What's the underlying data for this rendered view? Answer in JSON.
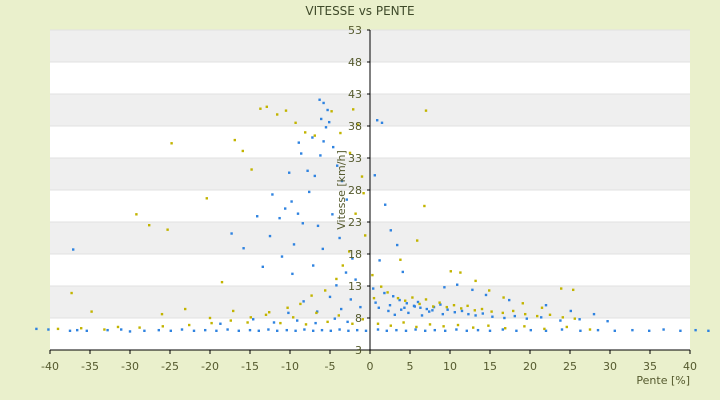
{
  "chart_data": {
    "type": "scatter",
    "title": "VITESSE vs PENTE",
    "xlabel": "Pente [%]",
    "ylabel": "Vitesse [km/h]",
    "xlim": [
      -40,
      40
    ],
    "ylim": [
      3,
      53
    ],
    "x_ticks": [
      -40,
      -35,
      -30,
      -25,
      -20,
      -15,
      -10,
      -5,
      0,
      5,
      10,
      15,
      20,
      25,
      30,
      35,
      40
    ],
    "y_ticks": [
      3,
      8,
      13,
      18,
      23,
      28,
      33,
      38,
      43,
      48,
      53
    ],
    "grid": "horizontal alternating bands",
    "series": [
      {
        "color": "#2f83e0",
        "points": [
          [
            -41.7,
            6.3
          ],
          [
            -40.2,
            6.2
          ],
          [
            -37.5,
            6.0
          ],
          [
            -36.6,
            6.1
          ],
          [
            -35.4,
            6.0
          ],
          [
            -32.8,
            6.1
          ],
          [
            -31.1,
            6.2
          ],
          [
            -30.0,
            5.9
          ],
          [
            -28.2,
            6.0
          ],
          [
            -26.4,
            6.1
          ],
          [
            -24.9,
            6.0
          ],
          [
            -23.5,
            6.2
          ],
          [
            -22.0,
            6.0
          ],
          [
            -20.6,
            6.1
          ],
          [
            -19.2,
            6.0
          ],
          [
            -17.8,
            6.2
          ],
          [
            -16.4,
            6.0
          ],
          [
            -15.0,
            6.1
          ],
          [
            -13.9,
            6.0
          ],
          [
            -12.7,
            6.2
          ],
          [
            -11.6,
            6.0
          ],
          [
            -10.4,
            6.1
          ],
          [
            -9.3,
            6.0
          ],
          [
            -8.2,
            6.2
          ],
          [
            -7.1,
            6.0
          ],
          [
            -6.0,
            6.1
          ],
          [
            -4.9,
            6.0
          ],
          [
            -3.8,
            6.2
          ],
          [
            -2.7,
            6.0
          ],
          [
            -1.6,
            6.1
          ],
          [
            -0.5,
            6.0
          ],
          [
            1.0,
            6.2
          ],
          [
            2.1,
            6.0
          ],
          [
            3.3,
            6.1
          ],
          [
            4.5,
            6.0
          ],
          [
            5.7,
            6.2
          ],
          [
            6.9,
            6.0
          ],
          [
            8.1,
            6.1
          ],
          [
            9.4,
            6.0
          ],
          [
            10.8,
            6.2
          ],
          [
            12.1,
            6.0
          ],
          [
            13.5,
            6.1
          ],
          [
            15.0,
            6.0
          ],
          [
            16.6,
            6.2
          ],
          [
            18.3,
            6.0
          ],
          [
            20.1,
            6.1
          ],
          [
            22.0,
            6.0
          ],
          [
            24.0,
            6.2
          ],
          [
            26.3,
            6.0
          ],
          [
            28.5,
            6.1
          ],
          [
            30.6,
            6.0
          ],
          [
            32.8,
            6.1
          ],
          [
            34.9,
            6.0
          ],
          [
            36.7,
            6.2
          ],
          [
            38.8,
            6.0
          ],
          [
            40.7,
            6.1
          ],
          [
            42.3,
            6.0
          ],
          [
            -37.1,
            18.7
          ],
          [
            -9.8,
            26.2
          ],
          [
            -10.6,
            25.1
          ],
          [
            -9.0,
            24.3
          ],
          [
            -11.3,
            23.6
          ],
          [
            -8.4,
            22.8
          ],
          [
            -12.5,
            20.8
          ],
          [
            -9.5,
            19.5
          ],
          [
            -7.6,
            27.7
          ],
          [
            -6.9,
            30.2
          ],
          [
            -6.2,
            33.4
          ],
          [
            -5.8,
            35.6
          ],
          [
            -5.5,
            37.8
          ],
          [
            -6.1,
            39.1
          ],
          [
            -5.3,
            40.5
          ],
          [
            -5.8,
            41.6
          ],
          [
            -6.3,
            42.1
          ],
          [
            -5.1,
            38.6
          ],
          [
            -7.2,
            36.2
          ],
          [
            -4.6,
            34.7
          ],
          [
            -4.1,
            31.8
          ],
          [
            -7.8,
            31.0
          ],
          [
            -8.6,
            33.7
          ],
          [
            -3.5,
            29.4
          ],
          [
            -2.9,
            26.5
          ],
          [
            -4.7,
            24.2
          ],
          [
            -6.5,
            22.4
          ],
          [
            -3.8,
            20.5
          ],
          [
            -5.9,
            18.8
          ],
          [
            -2.2,
            17.3
          ],
          [
            -7.1,
            16.2
          ],
          [
            -3.0,
            15.1
          ],
          [
            -1.8,
            14.0
          ],
          [
            -4.2,
            13.1
          ],
          [
            -9.7,
            14.9
          ],
          [
            -11.0,
            17.6
          ],
          [
            -13.4,
            16.0
          ],
          [
            -15.8,
            18.9
          ],
          [
            -17.3,
            21.2
          ],
          [
            -14.1,
            23.9
          ],
          [
            -12.2,
            27.3
          ],
          [
            -10.1,
            30.7
          ],
          [
            -8.9,
            35.4
          ],
          [
            0.9,
            38.9
          ],
          [
            1.5,
            38.5
          ],
          [
            0.6,
            30.3
          ],
          [
            1.9,
            25.7
          ],
          [
            2.6,
            21.7
          ],
          [
            3.4,
            19.4
          ],
          [
            1.2,
            17.0
          ],
          [
            4.1,
            15.2
          ],
          [
            0.4,
            12.6
          ],
          [
            1.8,
            11.9
          ],
          [
            2.9,
            11.4
          ],
          [
            3.7,
            10.8
          ],
          [
            4.6,
            10.3
          ],
          [
            5.5,
            9.9
          ],
          [
            6.3,
            9.6
          ],
          [
            7.1,
            9.4
          ],
          [
            8.0,
            9.7
          ],
          [
            8.8,
            10.1
          ],
          [
            9.7,
            9.3
          ],
          [
            10.6,
            8.9
          ],
          [
            11.5,
            9.1
          ],
          [
            12.3,
            8.6
          ],
          [
            13.2,
            8.4
          ],
          [
            14.1,
            8.7
          ],
          [
            15.3,
            8.2
          ],
          [
            16.8,
            8.0
          ],
          [
            18.1,
            8.3
          ],
          [
            19.6,
            7.9
          ],
          [
            21.4,
            8.1
          ],
          [
            23.8,
            7.6
          ],
          [
            26.2,
            7.8
          ],
          [
            28.0,
            8.6
          ],
          [
            29.7,
            7.5
          ],
          [
            25.1,
            9.1
          ],
          [
            22.0,
            10.0
          ],
          [
            17.4,
            10.8
          ],
          [
            14.5,
            11.6
          ],
          [
            12.8,
            12.4
          ],
          [
            10.9,
            13.2
          ],
          [
            9.3,
            12.8
          ],
          [
            2.3,
            9.1
          ],
          [
            3.1,
            8.5
          ],
          [
            3.9,
            9.3
          ],
          [
            4.8,
            8.8
          ],
          [
            5.6,
            9.8
          ],
          [
            6.5,
            8.4
          ],
          [
            7.4,
            9.0
          ],
          [
            1.1,
            9.6
          ],
          [
            0.7,
            10.4
          ],
          [
            2.5,
            10.0
          ],
          [
            4.3,
            9.6
          ],
          [
            6.0,
            10.5
          ],
          [
            7.8,
            9.2
          ],
          [
            9.1,
            8.6
          ],
          [
            -1.2,
            9.7
          ],
          [
            -2.4,
            10.9
          ],
          [
            -3.6,
            9.4
          ],
          [
            -5.0,
            11.3
          ],
          [
            -6.6,
            9.0
          ],
          [
            -8.3,
            10.6
          ],
          [
            -10.2,
            8.8
          ],
          [
            -2.8,
            7.4
          ],
          [
            -4.4,
            7.9
          ],
          [
            -6.8,
            7.2
          ],
          [
            -9.1,
            7.6
          ],
          [
            -12.0,
            7.3
          ],
          [
            -14.6,
            7.8
          ],
          [
            -18.7,
            7.1
          ]
        ]
      },
      {
        "color": "#c2b400",
        "points": [
          [
            -37.3,
            11.9
          ],
          [
            -34.8,
            9.0
          ],
          [
            -29.2,
            24.2
          ],
          [
            -27.6,
            22.5
          ],
          [
            -25.3,
            21.8
          ],
          [
            -24.8,
            35.3
          ],
          [
            -20.4,
            26.7
          ],
          [
            -18.5,
            13.6
          ],
          [
            -16.9,
            35.8
          ],
          [
            -15.9,
            34.1
          ],
          [
            -14.8,
            31.2
          ],
          [
            -13.7,
            40.7
          ],
          [
            -12.9,
            41.0
          ],
          [
            -11.6,
            39.8
          ],
          [
            -10.5,
            40.4
          ],
          [
            -9.3,
            38.5
          ],
          [
            -8.1,
            37.0
          ],
          [
            -6.9,
            36.5
          ],
          [
            -4.8,
            40.3
          ],
          [
            -3.7,
            36.9
          ],
          [
            -2.1,
            40.6
          ],
          [
            -1.5,
            38.2
          ],
          [
            -2.5,
            33.8
          ],
          [
            -1.0,
            30.1
          ],
          [
            -0.8,
            27.5
          ],
          [
            -1.8,
            24.3
          ],
          [
            -0.6,
            20.9
          ],
          [
            -2.6,
            18.4
          ],
          [
            -3.4,
            16.2
          ],
          [
            -4.2,
            14.1
          ],
          [
            -5.6,
            12.3
          ],
          [
            -7.3,
            11.5
          ],
          [
            -8.7,
            10.2
          ],
          [
            -10.3,
            9.6
          ],
          [
            -12.6,
            8.9
          ],
          [
            -14.9,
            8.1
          ],
          [
            -17.4,
            7.6
          ],
          [
            -19.8,
            7.2
          ],
          [
            -22.6,
            6.9
          ],
          [
            -25.9,
            6.7
          ],
          [
            -28.8,
            6.5
          ],
          [
            -31.5,
            6.6
          ],
          [
            -33.2,
            6.2
          ],
          [
            -36.1,
            6.4
          ],
          [
            -39.0,
            6.3
          ],
          [
            0.3,
            14.7
          ],
          [
            0.5,
            11.1
          ],
          [
            1.4,
            12.9
          ],
          [
            2.2,
            12.0
          ],
          [
            3.5,
            11.1
          ],
          [
            4.4,
            10.7
          ],
          [
            5.3,
            11.2
          ],
          [
            6.2,
            10.2
          ],
          [
            7.0,
            10.9
          ],
          [
            7.9,
            9.8
          ],
          [
            8.7,
            10.4
          ],
          [
            9.6,
            9.7
          ],
          [
            10.5,
            10.0
          ],
          [
            11.4,
            9.5
          ],
          [
            12.2,
            9.9
          ],
          [
            13.1,
            9.2
          ],
          [
            14.0,
            9.4
          ],
          [
            15.2,
            9.0
          ],
          [
            16.6,
            8.8
          ],
          [
            17.9,
            9.1
          ],
          [
            19.4,
            8.6
          ],
          [
            20.9,
            8.3
          ],
          [
            22.5,
            8.5
          ],
          [
            24.1,
            8.1
          ],
          [
            25.6,
            7.9
          ],
          [
            7.0,
            40.4
          ],
          [
            6.8,
            25.5
          ],
          [
            5.9,
            20.1
          ],
          [
            3.8,
            17.1
          ],
          [
            10.1,
            15.3
          ],
          [
            11.3,
            15.1
          ],
          [
            13.2,
            13.8
          ],
          [
            14.9,
            12.3
          ],
          [
            16.7,
            11.2
          ],
          [
            19.1,
            10.3
          ],
          [
            21.5,
            9.6
          ],
          [
            23.9,
            12.6
          ],
          [
            25.4,
            12.4
          ],
          [
            1.0,
            7.1
          ],
          [
            2.6,
            6.8
          ],
          [
            4.2,
            7.3
          ],
          [
            5.8,
            6.6
          ],
          [
            7.5,
            7.0
          ],
          [
            9.2,
            6.7
          ],
          [
            11.0,
            6.9
          ],
          [
            12.9,
            6.5
          ],
          [
            14.8,
            6.8
          ],
          [
            16.9,
            6.4
          ],
          [
            19.3,
            6.7
          ],
          [
            21.8,
            6.3
          ],
          [
            24.6,
            6.6
          ],
          [
            27.5,
            6.2
          ],
          [
            -0.9,
            7.8
          ],
          [
            -2.2,
            7.1
          ],
          [
            -3.9,
            8.4
          ],
          [
            -5.3,
            7.4
          ],
          [
            -6.7,
            8.8
          ],
          [
            -8.0,
            7.0
          ],
          [
            -9.6,
            8.1
          ],
          [
            -11.2,
            7.2
          ],
          [
            -13.0,
            8.5
          ],
          [
            -15.3,
            7.3
          ],
          [
            -17.1,
            9.1
          ],
          [
            -20.0,
            8.0
          ],
          [
            -23.1,
            9.4
          ],
          [
            -26.0,
            8.6
          ]
        ]
      }
    ]
  }
}
